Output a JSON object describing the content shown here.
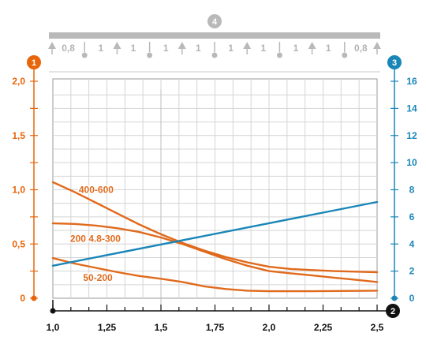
{
  "chart_data": {
    "type": "line",
    "title": "",
    "x_axis": {
      "range": [
        1.0,
        2.5
      ],
      "ticks": [
        "1,0",
        "1,25",
        "1,5",
        "1,75",
        "2,0",
        "2,25",
        "2,5"
      ],
      "marker": "2"
    },
    "y_axis_left": {
      "range": [
        0,
        2.0
      ],
      "ticks": [
        "0",
        "0,5",
        "1,0",
        "1,5",
        "2,0"
      ],
      "marker": "1",
      "color": "#e8650a"
    },
    "y_axis_right": {
      "range": [
        0,
        16
      ],
      "ticks": [
        "0",
        "2",
        "4",
        "6",
        "8",
        "10",
        "12",
        "14",
        "16"
      ],
      "marker": "3",
      "color": "#1a86b8"
    },
    "span_diagram": {
      "marker": "4",
      "labels": [
        "0,8",
        "1",
        "1",
        "1",
        "1",
        "1",
        "1",
        "1",
        "1",
        "0,8"
      ]
    },
    "grid": true,
    "series": [
      {
        "name": "400-600",
        "axis": "left",
        "color": "#e06a1c",
        "points": [
          [
            1.0,
            1.07
          ],
          [
            1.1,
            0.98
          ],
          [
            1.2,
            0.88
          ],
          [
            1.3,
            0.78
          ],
          [
            1.4,
            0.68
          ],
          [
            1.5,
            0.59
          ],
          [
            1.6,
            0.51
          ],
          [
            1.7,
            0.44
          ],
          [
            1.8,
            0.38
          ],
          [
            1.9,
            0.33
          ],
          [
            2.0,
            0.29
          ],
          [
            2.1,
            0.27
          ],
          [
            2.2,
            0.26
          ],
          [
            2.3,
            0.25
          ],
          [
            2.4,
            0.245
          ],
          [
            2.5,
            0.24
          ]
        ]
      },
      {
        "name": "200 4.8-300",
        "axis": "left",
        "color": "#e06a1c",
        "points": [
          [
            1.0,
            0.69
          ],
          [
            1.1,
            0.685
          ],
          [
            1.2,
            0.67
          ],
          [
            1.3,
            0.645
          ],
          [
            1.4,
            0.61
          ],
          [
            1.5,
            0.56
          ],
          [
            1.6,
            0.5
          ],
          [
            1.7,
            0.43
          ],
          [
            1.8,
            0.36
          ],
          [
            1.9,
            0.3
          ],
          [
            2.0,
            0.25
          ],
          [
            2.1,
            0.23
          ],
          [
            2.2,
            0.21
          ],
          [
            2.3,
            0.19
          ],
          [
            2.4,
            0.17
          ],
          [
            2.5,
            0.15
          ]
        ]
      },
      {
        "name": "50-200",
        "axis": "left",
        "color": "#e06a1c",
        "points": [
          [
            1.0,
            0.37
          ],
          [
            1.1,
            0.32
          ],
          [
            1.2,
            0.28
          ],
          [
            1.3,
            0.24
          ],
          [
            1.4,
            0.205
          ],
          [
            1.5,
            0.18
          ],
          [
            1.6,
            0.15
          ],
          [
            1.7,
            0.11
          ],
          [
            1.8,
            0.085
          ],
          [
            1.9,
            0.07
          ],
          [
            2.0,
            0.065
          ],
          [
            2.2,
            0.065
          ],
          [
            2.5,
            0.07
          ]
        ]
      },
      {
        "name": "",
        "axis": "right",
        "color": "#1a86b8",
        "points": [
          [
            1.0,
            2.4
          ],
          [
            2.5,
            7.1
          ]
        ]
      }
    ]
  }
}
